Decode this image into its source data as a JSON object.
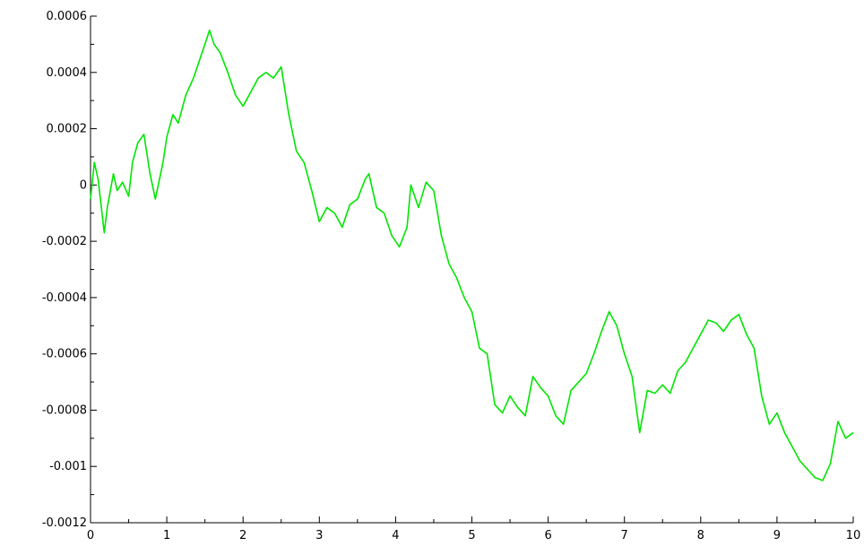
{
  "chart_data": {
    "type": "line",
    "title": "",
    "xlabel": "",
    "ylabel": "",
    "xlim": [
      0,
      10
    ],
    "ylim": [
      -0.0012,
      0.0006
    ],
    "grid": false,
    "x_ticks": [
      0,
      1,
      2,
      3,
      4,
      5,
      6,
      7,
      8,
      9,
      10
    ],
    "x_tick_labels": [
      "0",
      "1",
      "2",
      "3",
      "4",
      "5",
      "6",
      "7",
      "8",
      "9",
      "10"
    ],
    "y_ticks": [
      0.0006,
      0.0004,
      0.0002,
      0,
      -0.0002,
      -0.0004,
      -0.0006,
      -0.0008,
      -0.001,
      -0.0012
    ],
    "y_tick_labels": [
      "0.0006",
      "0.0004",
      "0.0002",
      "0",
      "-0.0002",
      "-0.0004",
      "-0.0006",
      "-0.0008",
      "-0.001",
      "-0.0012"
    ],
    "series": [
      {
        "color": "#00e600",
        "x": [
          0,
          0.05,
          0.1,
          0.18,
          0.22,
          0.3,
          0.35,
          0.42,
          0.5,
          0.55,
          0.62,
          0.7,
          0.78,
          0.85,
          0.95,
          1.0,
          1.08,
          1.15,
          1.25,
          1.35,
          1.45,
          1.5,
          1.56,
          1.62,
          1.7,
          1.8,
          1.9,
          2.0,
          2.1,
          2.2,
          2.3,
          2.4,
          2.5,
          2.6,
          2.7,
          2.8,
          2.9,
          3.0,
          3.1,
          3.2,
          3.3,
          3.4,
          3.5,
          3.6,
          3.65,
          3.75,
          3.85,
          3.95,
          4.05,
          4.15,
          4.2,
          4.3,
          4.4,
          4.5,
          4.6,
          4.7,
          4.8,
          4.9,
          5.0,
          5.1,
          5.2,
          5.3,
          5.4,
          5.5,
          5.6,
          5.7,
          5.8,
          5.9,
          6.0,
          6.1,
          6.2,
          6.3,
          6.4,
          6.5,
          6.6,
          6.7,
          6.8,
          6.9,
          7.0,
          7.1,
          7.2,
          7.3,
          7.4,
          7.5,
          7.6,
          7.7,
          7.8,
          7.9,
          8.0,
          8.1,
          8.2,
          8.3,
          8.4,
          8.5,
          8.6,
          8.7,
          8.8,
          8.9,
          9.0,
          9.1,
          9.2,
          9.3,
          9.4,
          9.5,
          9.6,
          9.7,
          9.8,
          9.9,
          10.0
        ],
        "y": [
          -5e-05,
          8e-05,
          2e-05,
          -0.00017,
          -8e-05,
          4e-05,
          -2e-05,
          1e-05,
          -4e-05,
          8e-05,
          0.00015,
          0.00018,
          4e-05,
          -5e-05,
          8e-05,
          0.00017,
          0.00025,
          0.00022,
          0.00032,
          0.00038,
          0.00046,
          0.0005,
          0.00055,
          0.0005,
          0.00047,
          0.0004,
          0.00032,
          0.00028,
          0.00033,
          0.00038,
          0.0004,
          0.00038,
          0.00042,
          0.00025,
          0.00012,
          8e-05,
          -2e-05,
          -0.00013,
          -8e-05,
          -0.0001,
          -0.00015,
          -7e-05,
          -5e-05,
          2e-05,
          4e-05,
          -8e-05,
          -0.0001,
          -0.00018,
          -0.00022,
          -0.00015,
          0.0,
          -8e-05,
          1e-05,
          -2e-05,
          -0.00018,
          -0.00028,
          -0.00033,
          -0.0004,
          -0.00045,
          -0.00058,
          -0.0006,
          -0.00078,
          -0.00081,
          -0.00075,
          -0.00079,
          -0.00082,
          -0.00068,
          -0.00072,
          -0.00075,
          -0.00082,
          -0.00085,
          -0.00073,
          -0.0007,
          -0.00067,
          -0.0006,
          -0.00052,
          -0.00045,
          -0.0005,
          -0.0006,
          -0.00068,
          -0.00088,
          -0.00073,
          -0.00074,
          -0.00071,
          -0.00074,
          -0.00066,
          -0.00063,
          -0.00058,
          -0.00053,
          -0.00048,
          -0.00049,
          -0.00052,
          -0.00048,
          -0.00046,
          -0.00053,
          -0.00058,
          -0.00075,
          -0.00085,
          -0.00081,
          -0.00088,
          -0.00093,
          -0.00098,
          -0.00101,
          -0.00104,
          -0.00105,
          -0.00099,
          -0.00084,
          -0.0009,
          -0.00088
        ]
      }
    ]
  }
}
